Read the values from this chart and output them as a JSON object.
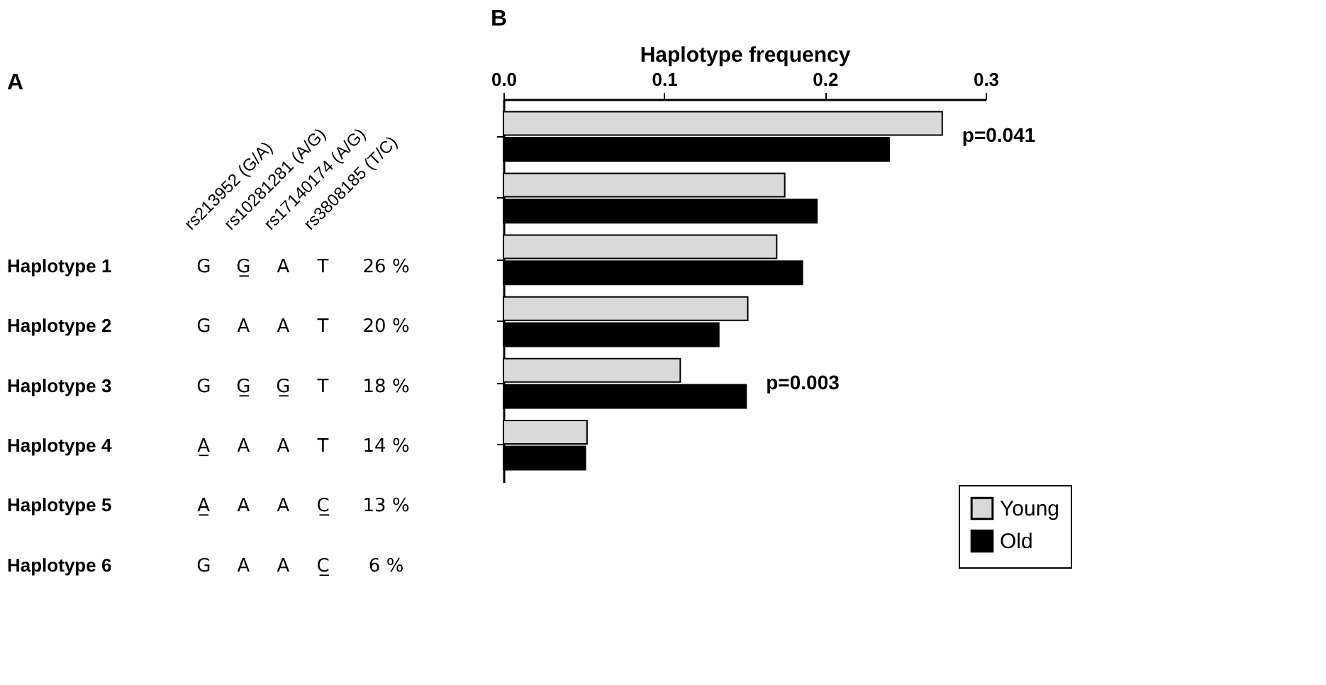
{
  "chart_data": [
    {
      "type": "other",
      "title": "A",
      "categories": [
        "rs213952 (G/A)",
        "rs10281281 (A/G)",
        "rs17140174 (A/G)",
        "rs3808185 (T/C)",
        null
      ],
      "y_categories": [
        "Haplotype 1",
        "Haplotype 2",
        "Haplotype 3",
        "Haplotype 4",
        "Haplotype 5",
        "Haplotype 6"
      ],
      "cell_labels": [
        [
          "G",
          "G̲",
          "A",
          "T",
          "26 %"
        ],
        [
          "G",
          "A",
          "A",
          "T",
          "20 %"
        ],
        [
          "G",
          "G̲",
          "G̲",
          "T",
          "18 %"
        ],
        [
          "A̲",
          "A",
          "A",
          "T",
          "14 %"
        ],
        [
          "A̲",
          "A",
          "A",
          "C̲",
          "13 %"
        ],
        [
          "G",
          "A",
          "A",
          "C̲",
          "6 %"
        ]
      ]
    },
    {
      "type": "bar",
      "orientation": "horizontal",
      "title": "B",
      "xlabel": "Haplotype frequency",
      "categories": [
        null,
        null,
        null,
        null,
        null,
        null
      ],
      "series": [
        {
          "name": "Young",
          "color": "#d9d9d9",
          "values": [
            0.273,
            0.175,
            0.17,
            0.152,
            0.11,
            0.052
          ]
        },
        {
          "name": "Old",
          "color": "#000000",
          "values": [
            0.24,
            0.195,
            0.186,
            0.134,
            0.151,
            0.051
          ]
        }
      ],
      "xlim": [
        0,
        0.3
      ],
      "xticks": [
        {
          "value": 0,
          "label": "0.0"
        },
        0.1,
        0.2,
        0.3
      ],
      "annotations": [
        "p=0.041",
        "p=0.003"
      ],
      "grid": false,
      "legend": "bottom right"
    }
  ]
}
